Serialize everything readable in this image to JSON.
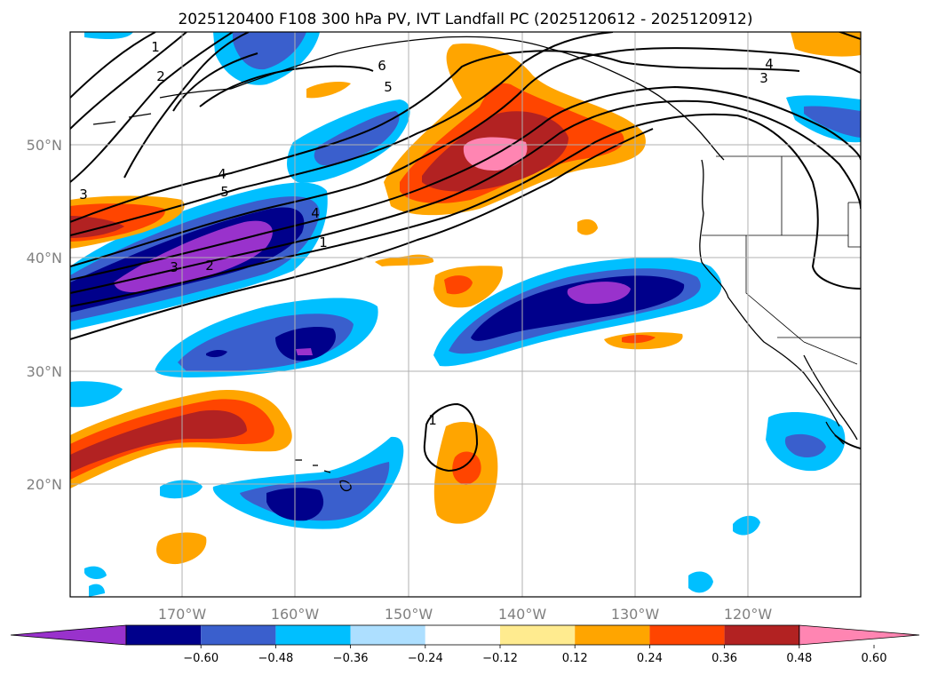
{
  "title": "2025120400 F108 300 hPa PV, IVT Landfall PC (2025120612 - 2025120912)",
  "map": {
    "lat_labels": [
      "50°N",
      "40°N",
      "30°N",
      "20°N"
    ],
    "lon_labels": [
      "170°W",
      "160°W",
      "150°W",
      "140°W",
      "130°W",
      "120°W"
    ]
  },
  "contour_labels": {
    "nw_1": "1",
    "nw_2": "2",
    "w_3": "3",
    "mid_4": "4",
    "mid_5": "5",
    "n_6": "6",
    "n_5": "5",
    "e_4": "4",
    "e_3": "3",
    "jet_4": "4",
    "jet_1": "1",
    "low_3": "3",
    "low_2": "2",
    "sub_1": "1"
  },
  "colorbar": {
    "ticks": [
      "−0.60",
      "−0.48",
      "−0.36",
      "−0.24",
      "−0.12",
      "0.12",
      "0.24",
      "0.36",
      "0.48",
      "0.60"
    ],
    "colors": [
      "#9932CC",
      "#00008B",
      "#3A5FCD",
      "#00BFFF",
      "#ADDFFF",
      "#FFFFFF",
      "#FFEB8F",
      "#FFA500",
      "#FF4500",
      "#B22222",
      "#FF85B2"
    ]
  },
  "colors": {
    "purple": "#9932CC",
    "navy": "#00008B",
    "royal": "#3A5FCD",
    "sky": "#00BFFF",
    "orange": "#FFA500",
    "redorange": "#FF4500",
    "firebrick": "#B22222",
    "pink": "#FF85B2"
  }
}
